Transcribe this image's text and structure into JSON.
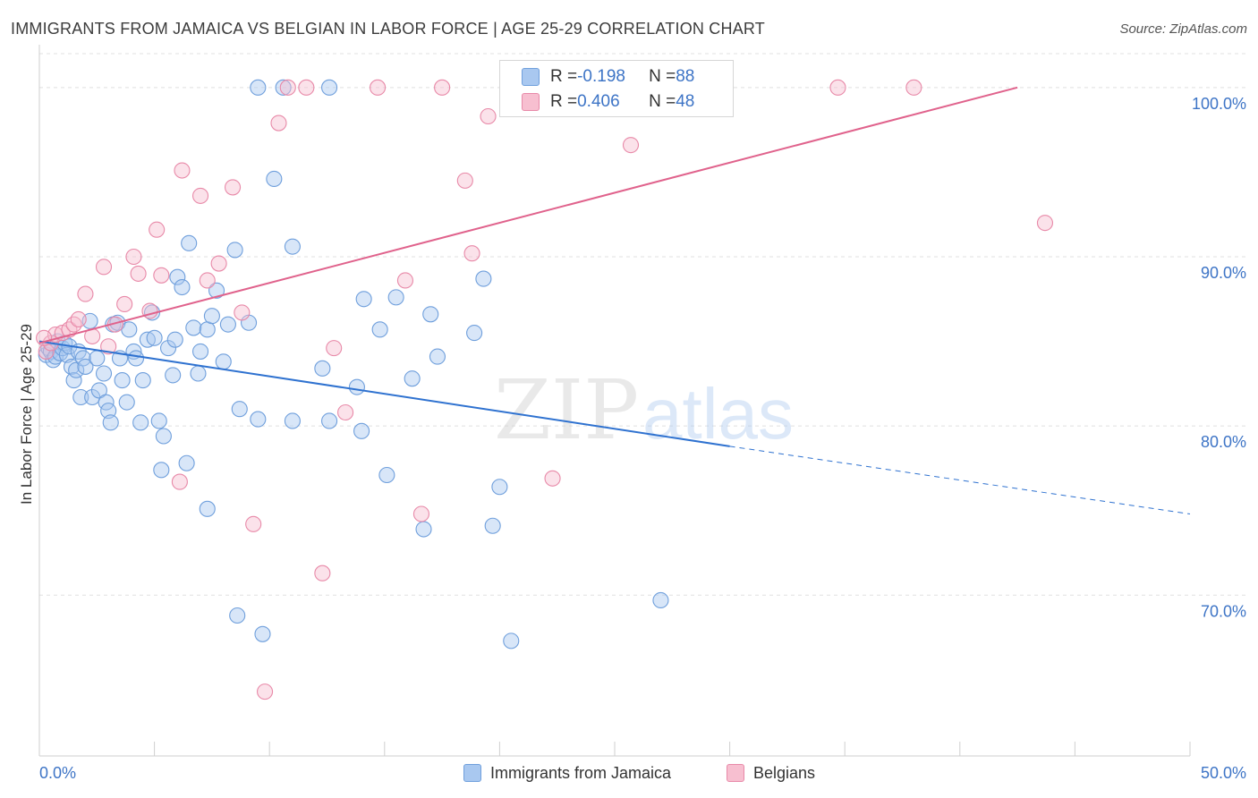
{
  "title": "IMMIGRANTS FROM JAMAICA VS BELGIAN IN LABOR FORCE | AGE 25-29 CORRELATION CHART",
  "source": "Source: ZipAtlas.com",
  "watermark": {
    "part1": "ZIP",
    "part2": "atlas"
  },
  "legend_top": [
    {
      "r_label": "R = ",
      "r_value": "-0.198",
      "n_label": "N = ",
      "n_value": "88"
    },
    {
      "r_label": "R = ",
      "r_value": "0.406",
      "n_label": "N = ",
      "n_value": "48"
    }
  ],
  "colors": {
    "blue_fill": "#a9c8f0",
    "blue_stroke": "#6f9fdc",
    "blue_line": "#2f72d0",
    "pink_fill": "#f7bfd0",
    "pink_stroke": "#e889a8",
    "pink_line": "#e0628c",
    "tick_label": "#3d74c6",
    "grid": "#e0e0e0"
  },
  "chart_data": {
    "type": "scatter",
    "title": "IMMIGRANTS FROM JAMAICA VS BELGIAN IN LABOR FORCE | AGE 25-29 CORRELATION CHART",
    "xlabel": "",
    "ylabel": "In Labor Force | Age 25-29",
    "xlim": [
      0,
      50
    ],
    "ylim": [
      60.5,
      102
    ],
    "x_tick_labels": [
      "0.0%",
      "50.0%"
    ],
    "y_ticks": [
      70,
      80,
      90,
      100
    ],
    "y_tick_labels": [
      "70.0%",
      "80.0%",
      "90.0%",
      "100.0%"
    ],
    "grid": true,
    "legend_position": "bottom",
    "series": [
      {
        "name": "Immigrants from Jamaica",
        "color": "#a9c8f0",
        "r": -0.198,
        "n": 88,
        "trend": {
          "x0": 0,
          "y0": 85.0,
          "x1": 30,
          "y1": 78.8,
          "dash_x1": 50,
          "dash_y1": 74.8
        },
        "points": [
          [
            0.3,
            84.2
          ],
          [
            0.4,
            84.6
          ],
          [
            0.5,
            84.4
          ],
          [
            0.6,
            83.9
          ],
          [
            0.7,
            84.1
          ],
          [
            0.8,
            85.0
          ],
          [
            0.9,
            84.3
          ],
          [
            1.0,
            84.6
          ],
          [
            1.1,
            84.9
          ],
          [
            1.2,
            84.2
          ],
          [
            1.3,
            84.7
          ],
          [
            1.4,
            83.5
          ],
          [
            1.5,
            82.7
          ],
          [
            1.6,
            83.3
          ],
          [
            1.7,
            84.4
          ],
          [
            1.8,
            81.7
          ],
          [
            1.9,
            84.0
          ],
          [
            2.0,
            83.5
          ],
          [
            2.2,
            86.2
          ],
          [
            2.3,
            81.7
          ],
          [
            2.5,
            84.0
          ],
          [
            2.6,
            82.1
          ],
          [
            2.8,
            83.1
          ],
          [
            2.9,
            81.4
          ],
          [
            3.0,
            80.9
          ],
          [
            3.1,
            80.2
          ],
          [
            3.2,
            86.0
          ],
          [
            3.4,
            86.1
          ],
          [
            3.5,
            84.0
          ],
          [
            3.6,
            82.7
          ],
          [
            3.8,
            81.4
          ],
          [
            3.9,
            85.7
          ],
          [
            4.1,
            84.4
          ],
          [
            4.2,
            84.0
          ],
          [
            4.4,
            80.2
          ],
          [
            4.5,
            82.7
          ],
          [
            4.7,
            85.1
          ],
          [
            4.9,
            86.7
          ],
          [
            5.0,
            85.2
          ],
          [
            5.2,
            80.3
          ],
          [
            5.4,
            79.4
          ],
          [
            5.6,
            84.6
          ],
          [
            5.8,
            83.0
          ],
          [
            5.9,
            85.1
          ],
          [
            6.0,
            88.8
          ],
          [
            6.2,
            88.2
          ],
          [
            6.5,
            90.8
          ],
          [
            6.7,
            85.8
          ],
          [
            6.9,
            83.1
          ],
          [
            7.0,
            84.4
          ],
          [
            7.3,
            85.7
          ],
          [
            7.5,
            86.5
          ],
          [
            7.7,
            88.0
          ],
          [
            8.0,
            83.8
          ],
          [
            8.2,
            86.0
          ],
          [
            8.5,
            90.4
          ],
          [
            8.7,
            81.0
          ],
          [
            9.1,
            86.1
          ],
          [
            9.5,
            80.4
          ],
          [
            10.2,
            94.6
          ],
          [
            11.0,
            80.3
          ],
          [
            11.0,
            90.6
          ],
          [
            12.3,
            83.4
          ],
          [
            12.6,
            80.3
          ],
          [
            13.8,
            82.3
          ],
          [
            14.1,
            87.5
          ],
          [
            14.0,
            79.7
          ],
          [
            14.8,
            85.7
          ],
          [
            15.1,
            77.1
          ],
          [
            15.5,
            87.6
          ],
          [
            16.2,
            82.8
          ],
          [
            16.7,
            73.9
          ],
          [
            17.3,
            84.1
          ],
          [
            17.0,
            86.6
          ],
          [
            18.9,
            85.5
          ],
          [
            19.3,
            88.7
          ],
          [
            19.7,
            74.1
          ],
          [
            20.0,
            76.4
          ],
          [
            20.5,
            67.3
          ],
          [
            27.0,
            69.7
          ],
          [
            9.5,
            100.0
          ],
          [
            10.6,
            100.0
          ],
          [
            12.6,
            100.0
          ],
          [
            5.3,
            77.4
          ],
          [
            6.4,
            77.8
          ],
          [
            7.3,
            75.1
          ],
          [
            8.6,
            68.8
          ],
          [
            9.7,
            67.7
          ]
        ]
      },
      {
        "name": "Belgians",
        "color": "#f7bfd0",
        "r": 0.406,
        "n": 48,
        "trend": {
          "x0": 0,
          "y0": 84.9,
          "x1": 42.5,
          "y1": 100.0
        },
        "points": [
          [
            0.3,
            84.4
          ],
          [
            0.5,
            84.9
          ],
          [
            0.7,
            85.4
          ],
          [
            1.0,
            85.5
          ],
          [
            1.3,
            85.7
          ],
          [
            1.5,
            86.0
          ],
          [
            1.7,
            86.3
          ],
          [
            2.0,
            87.8
          ],
          [
            2.3,
            85.3
          ],
          [
            2.8,
            89.4
          ],
          [
            3.0,
            84.7
          ],
          [
            3.3,
            86.0
          ],
          [
            3.7,
            87.2
          ],
          [
            4.1,
            90.0
          ],
          [
            4.3,
            89.0
          ],
          [
            4.8,
            86.8
          ],
          [
            5.1,
            91.6
          ],
          [
            5.3,
            88.9
          ],
          [
            6.1,
            76.7
          ],
          [
            6.2,
            95.1
          ],
          [
            7.0,
            93.6
          ],
          [
            7.3,
            88.6
          ],
          [
            7.8,
            89.6
          ],
          [
            8.4,
            94.1
          ],
          [
            8.8,
            86.7
          ],
          [
            9.3,
            74.2
          ],
          [
            9.8,
            64.3
          ],
          [
            10.4,
            97.9
          ],
          [
            10.8,
            100.0
          ],
          [
            11.6,
            100.0
          ],
          [
            12.3,
            71.3
          ],
          [
            12.8,
            84.6
          ],
          [
            13.3,
            80.8
          ],
          [
            14.7,
            100.0
          ],
          [
            15.9,
            88.6
          ],
          [
            16.6,
            74.8
          ],
          [
            17.5,
            100.0
          ],
          [
            18.5,
            94.5
          ],
          [
            18.8,
            90.2
          ],
          [
            19.5,
            98.3
          ],
          [
            22.3,
            76.9
          ],
          [
            24.8,
            100.0
          ],
          [
            25.7,
            96.6
          ],
          [
            28.0,
            100.0
          ],
          [
            34.7,
            100.0
          ],
          [
            38.0,
            100.0
          ],
          [
            43.7,
            92.0
          ],
          [
            0.2,
            85.2
          ]
        ]
      }
    ]
  }
}
